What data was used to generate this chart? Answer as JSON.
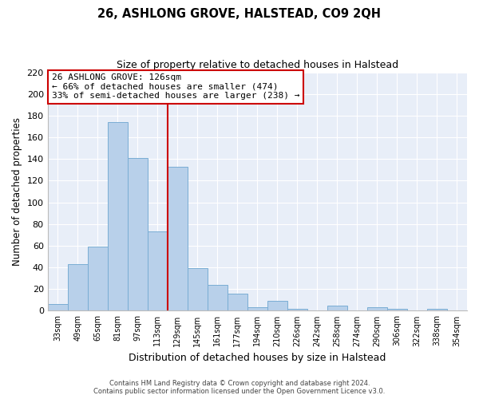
{
  "title": "26, ASHLONG GROVE, HALSTEAD, CO9 2QH",
  "subtitle": "Size of property relative to detached houses in Halstead",
  "xlabel": "Distribution of detached houses by size in Halstead",
  "ylabel": "Number of detached properties",
  "bar_labels": [
    "33sqm",
    "49sqm",
    "65sqm",
    "81sqm",
    "97sqm",
    "113sqm",
    "129sqm",
    "145sqm",
    "161sqm",
    "177sqm",
    "194sqm",
    "210sqm",
    "226sqm",
    "242sqm",
    "258sqm",
    "274sqm",
    "290sqm",
    "306sqm",
    "322sqm",
    "338sqm",
    "354sqm"
  ],
  "bar_values": [
    6,
    43,
    59,
    174,
    141,
    73,
    133,
    39,
    24,
    16,
    3,
    9,
    2,
    0,
    5,
    0,
    3,
    2,
    0,
    2,
    0
  ],
  "bar_color": "#b8d0ea",
  "bar_edge_color": "#7aadd4",
  "vline_color": "#cc0000",
  "vline_x_index": 6,
  "ylim_max": 220,
  "yticks": [
    0,
    20,
    40,
    60,
    80,
    100,
    120,
    140,
    160,
    180,
    200,
    220
  ],
  "annotation_title": "26 ASHLONG GROVE: 126sqm",
  "annotation_line1": "← 66% of detached houses are smaller (474)",
  "annotation_line2": "33% of semi-detached houses are larger (238) →",
  "annotation_box_facecolor": "#ffffff",
  "annotation_box_edgecolor": "#cc0000",
  "footer1": "Contains HM Land Registry data © Crown copyright and database right 2024.",
  "footer2": "Contains public sector information licensed under the Open Government Licence v3.0.",
  "bg_color": "#e8eef8",
  "grid_color": "#ffffff"
}
